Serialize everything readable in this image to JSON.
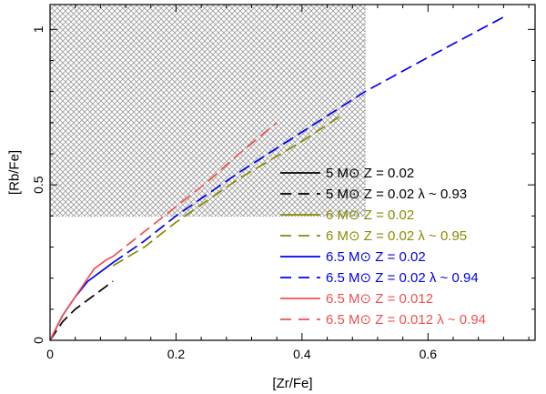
{
  "chart_data": {
    "type": "line",
    "xlabel": "[Zr/Fe]",
    "ylabel": "[Rb/Fe]",
    "xlim": [
      0,
      0.77
    ],
    "ylim": [
      0,
      1.08
    ],
    "x_ticks": [
      0,
      0.2,
      0.4,
      0.6
    ],
    "y_ticks": [
      0,
      0.5,
      1
    ],
    "x_tick_labels": [
      "0",
      "0.2",
      "0.4",
      "0.6"
    ],
    "y_tick_labels": [
      "0",
      "0.5",
      "1"
    ],
    "grid": false,
    "legend_position": "bottom-right",
    "shaded_region": {
      "x": [
        0,
        0.5
      ],
      "y": [
        0.4,
        1.08
      ]
    },
    "series": [
      {
        "name": "5   M⊙ Z = 0.02",
        "color": "#000000",
        "dash": "solid",
        "points": []
      },
      {
        "name": "5   M⊙ Z = 0.02 λ ~ 0.93",
        "color": "#000000",
        "dash": "dashed",
        "points": [
          [
            0,
            0
          ],
          [
            0.01,
            0.03
          ],
          [
            0.02,
            0.06
          ],
          [
            0.04,
            0.1
          ],
          [
            0.06,
            0.13
          ],
          [
            0.08,
            0.16
          ],
          [
            0.1,
            0.19
          ]
        ]
      },
      {
        "name": "6   M⊙ Z = 0.02",
        "color": "#8a8a00",
        "dash": "solid",
        "points": []
      },
      {
        "name": "6   M⊙ Z = 0.02 λ ~ 0.95",
        "color": "#8a8a00",
        "dash": "dashed",
        "points": [
          [
            0.1,
            0.24
          ],
          [
            0.15,
            0.3
          ],
          [
            0.2,
            0.38
          ],
          [
            0.3,
            0.52
          ],
          [
            0.4,
            0.64
          ],
          [
            0.46,
            0.72
          ]
        ]
      },
      {
        "name": "6.5 M⊙ Z = 0.02",
        "color": "#0000ee",
        "dash": "solid",
        "points": [
          [
            0,
            0
          ],
          [
            0.01,
            0.04
          ],
          [
            0.02,
            0.08
          ],
          [
            0.04,
            0.14
          ],
          [
            0.06,
            0.19
          ],
          [
            0.08,
            0.22
          ],
          [
            0.1,
            0.25
          ]
        ]
      },
      {
        "name": "6.5 M⊙ Z = 0.02 λ ~ 0.94",
        "color": "#0000ee",
        "dash": "dashed",
        "points": [
          [
            0.1,
            0.25
          ],
          [
            0.15,
            0.32
          ],
          [
            0.2,
            0.4
          ],
          [
            0.3,
            0.54
          ],
          [
            0.4,
            0.67
          ],
          [
            0.5,
            0.8
          ],
          [
            0.6,
            0.91
          ],
          [
            0.72,
            1.04
          ]
        ]
      },
      {
        "name": "6.5 M⊙ Z = 0.012",
        "color": "#f05050",
        "dash": "solid",
        "points": [
          [
            0,
            0
          ],
          [
            0.01,
            0.04
          ],
          [
            0.02,
            0.08
          ],
          [
            0.04,
            0.14
          ],
          [
            0.06,
            0.2
          ],
          [
            0.07,
            0.23
          ],
          [
            0.09,
            0.26
          ],
          [
            0.1,
            0.27
          ]
        ]
      },
      {
        "name": "6.5 M⊙ Z = 0.012 λ ~ 0.94",
        "color": "#f05050",
        "dash": "dashed",
        "points": [
          [
            0.1,
            0.27
          ],
          [
            0.15,
            0.35
          ],
          [
            0.2,
            0.43
          ],
          [
            0.25,
            0.51
          ],
          [
            0.3,
            0.6
          ],
          [
            0.36,
            0.7
          ]
        ]
      }
    ]
  }
}
